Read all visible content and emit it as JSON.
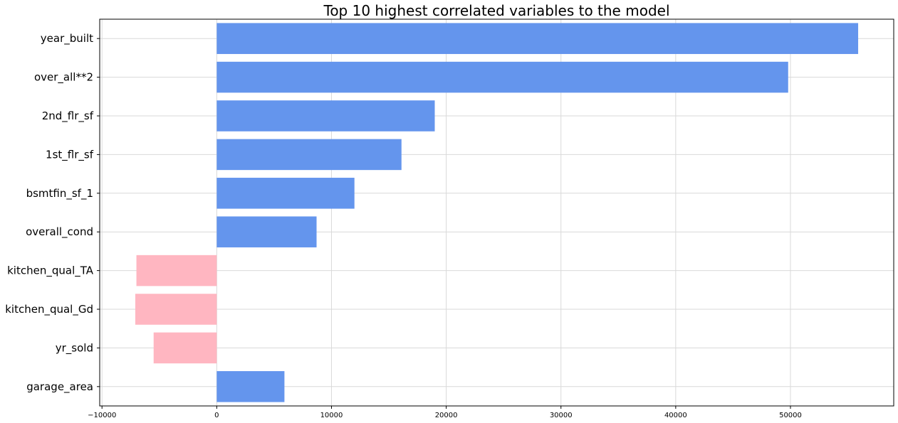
{
  "chart_data": {
    "type": "bar",
    "orientation": "horizontal",
    "title": "Top 10 highest correlated variables to the model",
    "xlabel": "",
    "ylabel": "",
    "categories": [
      "year_built",
      "over_all**2",
      "2nd_flr_sf",
      "1st_flr_sf",
      "bsmtfin_sf_1",
      "overall_cond",
      "kitchen_qual_TA",
      "kitchen_qual_Gd",
      "yr_sold",
      "garage_area"
    ],
    "values": [
      55900,
      49800,
      19000,
      16100,
      12000,
      8700,
      -7000,
      -7100,
      -5500,
      5900
    ],
    "xlim": [
      -10200,
      59000
    ],
    "xticks": [
      -10000,
      0,
      10000,
      20000,
      30000,
      40000,
      50000
    ],
    "xtick_labels": [
      "−10000",
      "0",
      "10000",
      "20000",
      "30000",
      "40000",
      "50000"
    ],
    "grid": true,
    "legend": "none",
    "colors": {
      "positive": "#6495ED",
      "negative": "#FFB6C1",
      "grid": "#d9d9d9",
      "axis": "#000000"
    }
  }
}
